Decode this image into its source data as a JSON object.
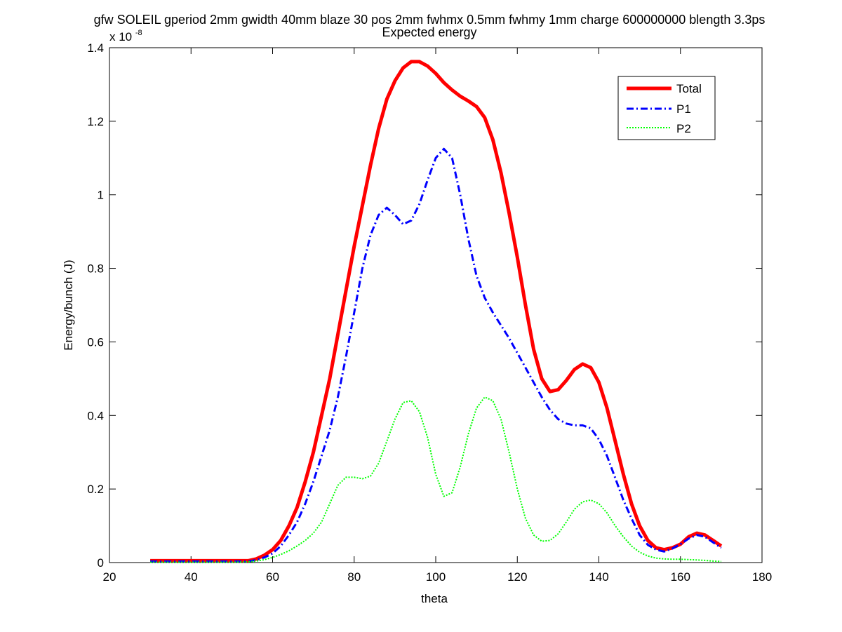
{
  "chart_data": {
    "type": "line",
    "title": "gfw SOLEIL gperiod 2mm gwidth 40mm blaze 30 pos 2mm fwhmx 0.5mm fwhmy 1mm charge 600000000 blength 3.3ps",
    "subtitle": "Expected energy",
    "xlabel": "theta",
    "ylabel": "Energy/bunch (J)",
    "y_exponent_base": "x 10",
    "y_exponent_power": "-8",
    "xlim": [
      20,
      180
    ],
    "ylim": [
      0,
      1.4
    ],
    "xticks": [
      20,
      40,
      60,
      80,
      100,
      120,
      140,
      160,
      180
    ],
    "yticks": [
      0,
      0.2,
      0.4,
      0.6,
      0.8,
      1,
      1.2,
      1.4
    ],
    "xtick_labels": [
      "20",
      "40",
      "60",
      "80",
      "100",
      "120",
      "140",
      "160",
      "180"
    ],
    "ytick_labels": [
      "0",
      "0.2",
      "0.4",
      "0.6",
      "0.8",
      "1",
      "1.2",
      "1.4"
    ],
    "grid": false,
    "legend_position": "top-right",
    "series": [
      {
        "name": "Total",
        "color": "#ff0000",
        "style": "solid",
        "points": [
          [
            30,
            0.005
          ],
          [
            40,
            0.005
          ],
          [
            50,
            0.005
          ],
          [
            54,
            0.005
          ],
          [
            56,
            0.01
          ],
          [
            58,
            0.02
          ],
          [
            60,
            0.035
          ],
          [
            62,
            0.06
          ],
          [
            64,
            0.1
          ],
          [
            66,
            0.15
          ],
          [
            68,
            0.22
          ],
          [
            70,
            0.3
          ],
          [
            72,
            0.4
          ],
          [
            74,
            0.5
          ],
          [
            76,
            0.62
          ],
          [
            78,
            0.74
          ],
          [
            80,
            0.86
          ],
          [
            82,
            0.97
          ],
          [
            84,
            1.08
          ],
          [
            86,
            1.18
          ],
          [
            88,
            1.26
          ],
          [
            90,
            1.31
          ],
          [
            92,
            1.345
          ],
          [
            94,
            1.362
          ],
          [
            96,
            1.362
          ],
          [
            98,
            1.35
          ],
          [
            100,
            1.33
          ],
          [
            102,
            1.305
          ],
          [
            104,
            1.285
          ],
          [
            106,
            1.268
          ],
          [
            108,
            1.255
          ],
          [
            110,
            1.24
          ],
          [
            112,
            1.21
          ],
          [
            114,
            1.15
          ],
          [
            116,
            1.06
          ],
          [
            118,
            0.95
          ],
          [
            120,
            0.83
          ],
          [
            122,
            0.7
          ],
          [
            124,
            0.58
          ],
          [
            126,
            0.5
          ],
          [
            128,
            0.465
          ],
          [
            130,
            0.47
          ],
          [
            132,
            0.495
          ],
          [
            134,
            0.525
          ],
          [
            136,
            0.54
          ],
          [
            138,
            0.53
          ],
          [
            140,
            0.49
          ],
          [
            142,
            0.42
          ],
          [
            144,
            0.33
          ],
          [
            146,
            0.24
          ],
          [
            148,
            0.16
          ],
          [
            150,
            0.1
          ],
          [
            152,
            0.06
          ],
          [
            154,
            0.04
          ],
          [
            156,
            0.035
          ],
          [
            158,
            0.04
          ],
          [
            160,
            0.05
          ],
          [
            162,
            0.07
          ],
          [
            164,
            0.08
          ],
          [
            166,
            0.075
          ],
          [
            168,
            0.06
          ],
          [
            170,
            0.045
          ]
        ]
      },
      {
        "name": "P1",
        "color": "#0000ff",
        "style": "dashdot",
        "points": [
          [
            30,
            0.003
          ],
          [
            40,
            0.003
          ],
          [
            50,
            0.003
          ],
          [
            54,
            0.003
          ],
          [
            56,
            0.007
          ],
          [
            58,
            0.014
          ],
          [
            60,
            0.025
          ],
          [
            62,
            0.045
          ],
          [
            64,
            0.075
          ],
          [
            66,
            0.11
          ],
          [
            68,
            0.16
          ],
          [
            70,
            0.22
          ],
          [
            72,
            0.29
          ],
          [
            74,
            0.36
          ],
          [
            76,
            0.45
          ],
          [
            78,
            0.56
          ],
          [
            80,
            0.68
          ],
          [
            82,
            0.8
          ],
          [
            84,
            0.89
          ],
          [
            86,
            0.945
          ],
          [
            88,
            0.965
          ],
          [
            90,
            0.945
          ],
          [
            92,
            0.92
          ],
          [
            94,
            0.93
          ],
          [
            96,
            0.975
          ],
          [
            98,
            1.04
          ],
          [
            100,
            1.1
          ],
          [
            102,
            1.125
          ],
          [
            104,
            1.1
          ],
          [
            106,
            1.0
          ],
          [
            108,
            0.88
          ],
          [
            110,
            0.78
          ],
          [
            112,
            0.72
          ],
          [
            114,
            0.68
          ],
          [
            116,
            0.645
          ],
          [
            118,
            0.61
          ],
          [
            120,
            0.57
          ],
          [
            122,
            0.53
          ],
          [
            124,
            0.49
          ],
          [
            126,
            0.45
          ],
          [
            128,
            0.415
          ],
          [
            130,
            0.39
          ],
          [
            132,
            0.378
          ],
          [
            134,
            0.373
          ],
          [
            136,
            0.373
          ],
          [
            138,
            0.365
          ],
          [
            140,
            0.335
          ],
          [
            142,
            0.29
          ],
          [
            144,
            0.23
          ],
          [
            146,
            0.17
          ],
          [
            148,
            0.12
          ],
          [
            150,
            0.075
          ],
          [
            152,
            0.048
          ],
          [
            154,
            0.035
          ],
          [
            156,
            0.03
          ],
          [
            158,
            0.038
          ],
          [
            160,
            0.05
          ],
          [
            162,
            0.065
          ],
          [
            164,
            0.075
          ],
          [
            166,
            0.07
          ],
          [
            168,
            0.055
          ],
          [
            170,
            0.04
          ]
        ]
      },
      {
        "name": "P2",
        "color": "#00ff00",
        "style": "dotted",
        "points": [
          [
            30,
            0.001
          ],
          [
            40,
            0.001
          ],
          [
            50,
            0.001
          ],
          [
            54,
            0.002
          ],
          [
            56,
            0.004
          ],
          [
            58,
            0.008
          ],
          [
            60,
            0.014
          ],
          [
            62,
            0.022
          ],
          [
            64,
            0.032
          ],
          [
            66,
            0.045
          ],
          [
            68,
            0.06
          ],
          [
            70,
            0.08
          ],
          [
            72,
            0.11
          ],
          [
            74,
            0.16
          ],
          [
            76,
            0.21
          ],
          [
            78,
            0.232
          ],
          [
            80,
            0.232
          ],
          [
            82,
            0.228
          ],
          [
            84,
            0.235
          ],
          [
            86,
            0.27
          ],
          [
            88,
            0.33
          ],
          [
            90,
            0.39
          ],
          [
            92,
            0.435
          ],
          [
            94,
            0.44
          ],
          [
            96,
            0.41
          ],
          [
            98,
            0.34
          ],
          [
            100,
            0.24
          ],
          [
            102,
            0.18
          ],
          [
            104,
            0.19
          ],
          [
            106,
            0.26
          ],
          [
            108,
            0.35
          ],
          [
            110,
            0.42
          ],
          [
            112,
            0.45
          ],
          [
            114,
            0.44
          ],
          [
            116,
            0.39
          ],
          [
            118,
            0.3
          ],
          [
            120,
            0.2
          ],
          [
            122,
            0.12
          ],
          [
            124,
            0.075
          ],
          [
            126,
            0.058
          ],
          [
            128,
            0.06
          ],
          [
            130,
            0.078
          ],
          [
            132,
            0.11
          ],
          [
            134,
            0.145
          ],
          [
            136,
            0.165
          ],
          [
            138,
            0.17
          ],
          [
            140,
            0.16
          ],
          [
            142,
            0.135
          ],
          [
            144,
            0.1
          ],
          [
            146,
            0.07
          ],
          [
            148,
            0.045
          ],
          [
            150,
            0.028
          ],
          [
            152,
            0.018
          ],
          [
            154,
            0.012
          ],
          [
            156,
            0.01
          ],
          [
            158,
            0.009
          ],
          [
            160,
            0.009
          ],
          [
            162,
            0.008
          ],
          [
            164,
            0.007
          ],
          [
            166,
            0.006
          ],
          [
            168,
            0.004
          ],
          [
            170,
            0.003
          ]
        ]
      }
    ]
  }
}
